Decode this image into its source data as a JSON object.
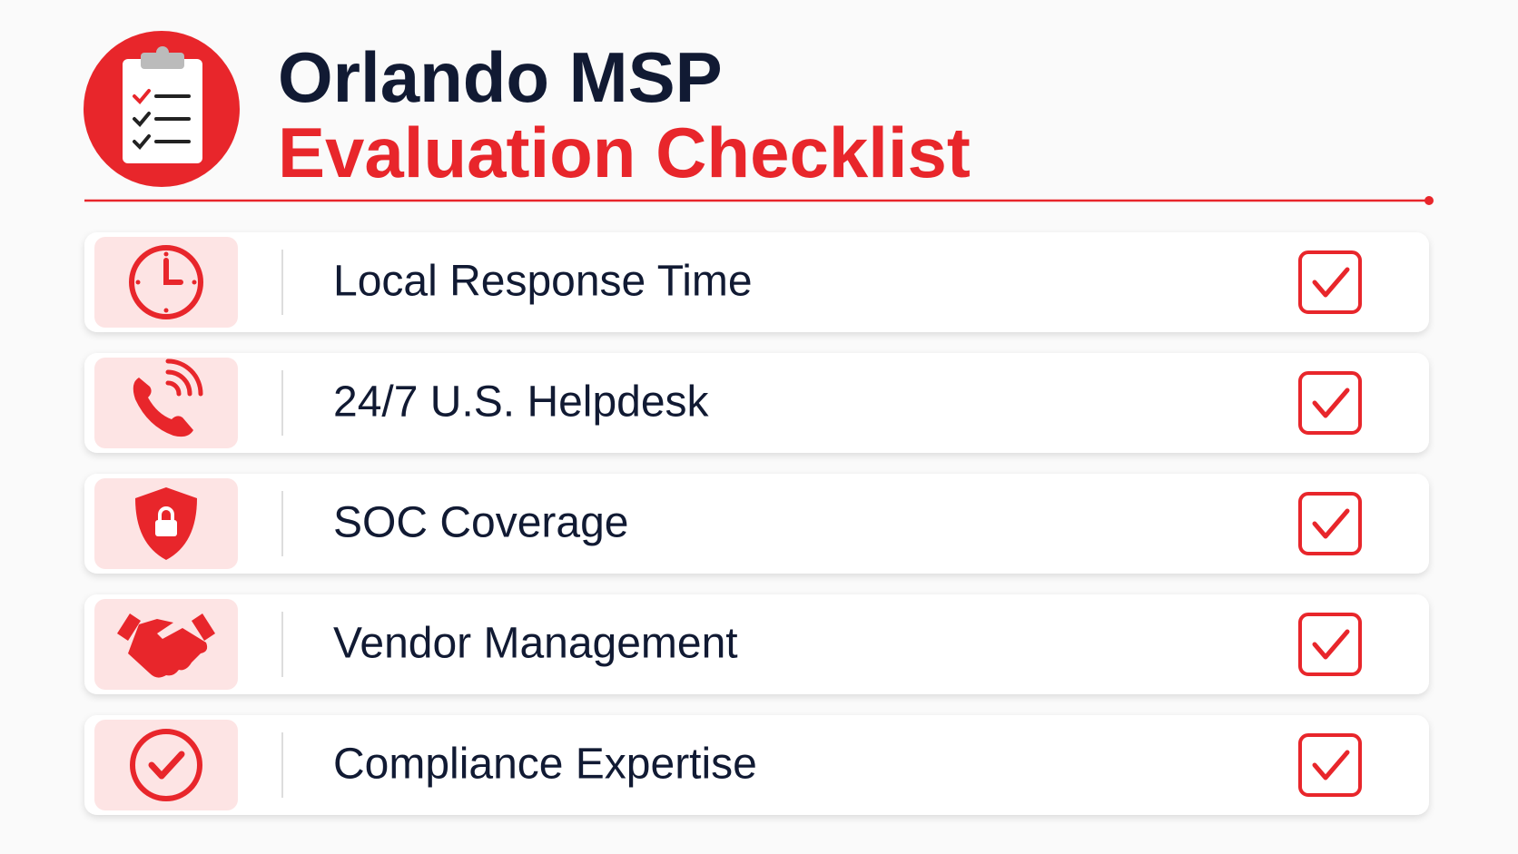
{
  "header": {
    "title_line1": "Orlando MSP",
    "title_line2": "Evaluation Checklist"
  },
  "items": [
    {
      "label": "Local Response Time"
    },
    {
      "label": "24/7 U.S. Helpdesk"
    },
    {
      "label": "SOC Coverage"
    },
    {
      "label": "Vendor Management"
    },
    {
      "label": "Compliance Expertise"
    }
  ]
}
